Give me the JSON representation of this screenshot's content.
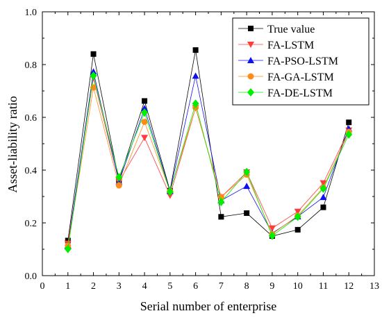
{
  "chart_data": {
    "type": "line",
    "xlabel": "Serial number of enterprise",
    "ylabel": "Asset-liability ratio",
    "xlim": [
      0,
      13
    ],
    "ylim": [
      0,
      1.0
    ],
    "x_ticks": [
      "0",
      "1",
      "2",
      "3",
      "4",
      "5",
      "6",
      "7",
      "8",
      "9",
      "10",
      "11",
      "12",
      "13"
    ],
    "y_ticks": [
      "0.0",
      "0.2",
      "0.4",
      "0.6",
      "0.8",
      "1.0"
    ],
    "x": [
      1,
      2,
      3,
      4,
      5,
      6,
      7,
      8,
      9,
      10,
      11,
      12
    ],
    "grid": false,
    "legend_position": "top-right",
    "series": [
      {
        "name": "True value",
        "color": "#000000",
        "marker": "square",
        "values": [
          0.133,
          0.84,
          0.361,
          0.662,
          0.322,
          0.855,
          0.223,
          0.237,
          0.15,
          0.174,
          0.259,
          0.581
        ]
      },
      {
        "name": "FA-LSTM",
        "color": "#ff3b3b",
        "marker": "triangle-down",
        "values": [
          0.122,
          0.75,
          0.357,
          0.523,
          0.304,
          0.636,
          0.298,
          0.392,
          0.18,
          0.243,
          0.351,
          0.551
        ]
      },
      {
        "name": "FA-PSO-LSTM",
        "color": "#1010ee",
        "marker": "triangle-up",
        "values": [
          0.113,
          0.773,
          0.355,
          0.634,
          0.32,
          0.757,
          0.285,
          0.339,
          0.161,
          0.224,
          0.297,
          0.557
        ]
      },
      {
        "name": "FA-GA-LSTM",
        "color": "#ff8c1a",
        "marker": "circle",
        "values": [
          0.113,
          0.713,
          0.342,
          0.583,
          0.32,
          0.637,
          0.298,
          0.383,
          0.158,
          0.227,
          0.334,
          0.545
        ]
      },
      {
        "name": "FA-DE-LSTM",
        "color": "#00ee00",
        "marker": "diamond",
        "values": [
          0.101,
          0.758,
          0.373,
          0.618,
          0.318,
          0.652,
          0.279,
          0.393,
          0.151,
          0.223,
          0.33,
          0.535
        ]
      }
    ]
  }
}
